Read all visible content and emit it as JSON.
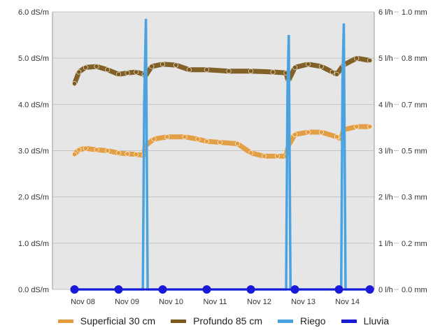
{
  "chart_data": {
    "type": "line",
    "title": "",
    "x": [
      "Nov 08",
      "Nov 09",
      "Nov 10",
      "Nov 11",
      "Nov 12",
      "Nov 13",
      "Nov 14"
    ],
    "y_left": {
      "ticks": [
        "0.0 dS/m",
        "1.0 dS/m",
        "2.0 dS/m",
        "3.0 dS/m",
        "4.0 dS/m",
        "5.0 dS/m",
        "6.0 dS/m"
      ],
      "range": [
        0,
        6
      ]
    },
    "y_right1": {
      "ticks": [
        "0 l/h",
        "1 l/h",
        "2 l/h",
        "3 l/h",
        "4 l/h",
        "5 l/h",
        "6 l/h"
      ],
      "range": [
        0,
        6
      ]
    },
    "y_right2": {
      "ticks": [
        "0.0 mm",
        "0.2 mm",
        "0.3 mm",
        "0.5 mm",
        "0.7 mm",
        "0.8 mm",
        "1.0 mm"
      ],
      "range": [
        0,
        1
      ]
    },
    "grid": true,
    "legend_position": "bottom",
    "series": [
      {
        "name": "Superficial 30 cm",
        "color": "#e39b3c",
        "axis": "left",
        "points": [
          [
            0,
            2.92
          ],
          [
            0.1,
            3.02
          ],
          [
            0.25,
            3.05
          ],
          [
            0.5,
            3.02
          ],
          [
            0.75,
            3.0
          ],
          [
            1.0,
            2.95
          ],
          [
            1.2,
            2.93
          ],
          [
            1.4,
            2.92
          ],
          [
            1.58,
            2.9
          ],
          [
            1.6,
            3.1
          ],
          [
            1.8,
            3.25
          ],
          [
            2.1,
            3.3
          ],
          [
            2.5,
            3.3
          ],
          [
            2.8,
            3.25
          ],
          [
            3.0,
            3.2
          ],
          [
            3.3,
            3.18
          ],
          [
            3.7,
            3.15
          ],
          [
            4.0,
            2.95
          ],
          [
            4.3,
            2.88
          ],
          [
            4.6,
            2.88
          ],
          [
            4.8,
            2.88
          ],
          [
            4.85,
            3.1
          ],
          [
            5.0,
            3.35
          ],
          [
            5.3,
            3.4
          ],
          [
            5.6,
            3.4
          ],
          [
            5.95,
            3.3
          ],
          [
            6.05,
            3.25
          ],
          [
            6.1,
            3.45
          ],
          [
            6.4,
            3.52
          ],
          [
            6.7,
            3.52
          ]
        ]
      },
      {
        "name": "Profundo 85 cm",
        "color": "#7c5a1d",
        "axis": "left",
        "points": [
          [
            0,
            4.45
          ],
          [
            0.1,
            4.7
          ],
          [
            0.25,
            4.8
          ],
          [
            0.5,
            4.82
          ],
          [
            0.75,
            4.75
          ],
          [
            1.0,
            4.65
          ],
          [
            1.2,
            4.68
          ],
          [
            1.4,
            4.7
          ],
          [
            1.58,
            4.65
          ],
          [
            1.6,
            4.6
          ],
          [
            1.75,
            4.82
          ],
          [
            2.0,
            4.87
          ],
          [
            2.3,
            4.85
          ],
          [
            2.6,
            4.75
          ],
          [
            3.0,
            4.75
          ],
          [
            3.5,
            4.72
          ],
          [
            4.0,
            4.72
          ],
          [
            4.5,
            4.7
          ],
          [
            4.8,
            4.68
          ],
          [
            4.85,
            4.5
          ],
          [
            5.0,
            4.8
          ],
          [
            5.3,
            4.87
          ],
          [
            5.6,
            4.82
          ],
          [
            5.85,
            4.7
          ],
          [
            5.95,
            4.65
          ],
          [
            6.1,
            4.85
          ],
          [
            6.4,
            5.0
          ],
          [
            6.7,
            4.95
          ]
        ]
      },
      {
        "name": "Riego",
        "color": "#4aa3e0",
        "axis": "right1",
        "points": [
          [
            0,
            0
          ],
          [
            1.55,
            0
          ],
          [
            1.58,
            4.0
          ],
          [
            1.62,
            5.85
          ],
          [
            1.66,
            0
          ],
          [
            4.8,
            0
          ],
          [
            4.83,
            4.2
          ],
          [
            4.86,
            5.5
          ],
          [
            4.9,
            0
          ],
          [
            6.05,
            0
          ],
          [
            6.08,
            4.5
          ],
          [
            6.11,
            5.75
          ],
          [
            6.15,
            0
          ],
          [
            6.7,
            0
          ]
        ]
      },
      {
        "name": "Lluvia",
        "color": "#1a1ad6",
        "axis": "right2",
        "points": [
          [
            0,
            0
          ],
          [
            1.0,
            0
          ],
          [
            2.0,
            0
          ],
          [
            3.0,
            0
          ],
          [
            4.0,
            0
          ],
          [
            5.0,
            0
          ],
          [
            6.0,
            0
          ],
          [
            6.7,
            0
          ]
        ]
      }
    ]
  }
}
